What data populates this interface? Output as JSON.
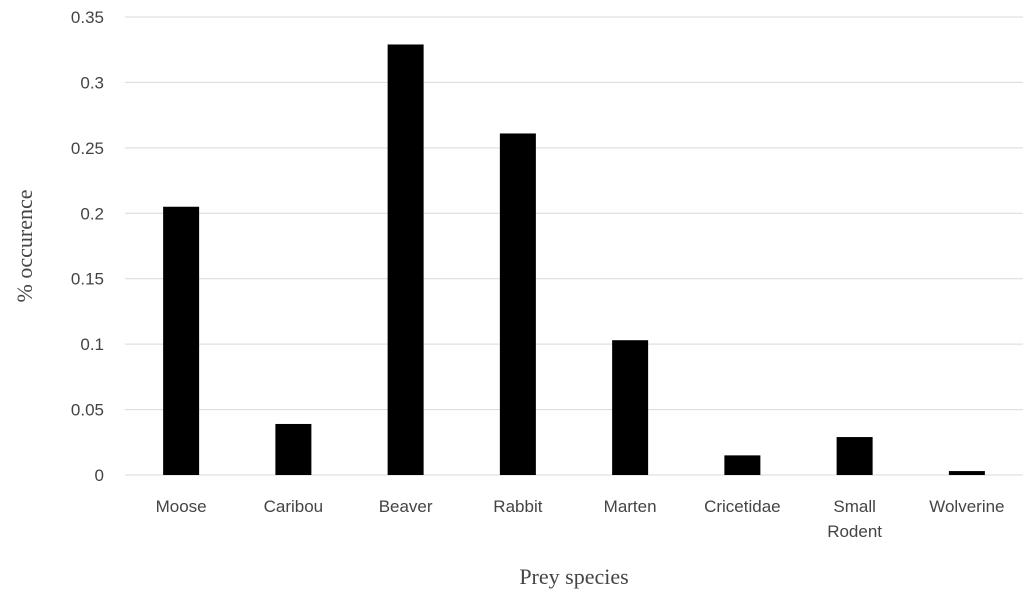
{
  "chart_data": {
    "type": "bar",
    "categories": [
      "Moose",
      "Caribou",
      "Beaver",
      "Rabbit",
      "Marten",
      "Cricetidae",
      "Small Rodent",
      "Wolverine"
    ],
    "category_lines": [
      [
        "Moose"
      ],
      [
        "Caribou"
      ],
      [
        "Beaver"
      ],
      [
        "Rabbit"
      ],
      [
        "Marten"
      ],
      [
        "Cricetidae"
      ],
      [
        "Small",
        "Rodent"
      ],
      [
        "Wolverine"
      ]
    ],
    "values": [
      0.205,
      0.039,
      0.329,
      0.261,
      0.103,
      0.015,
      0.029,
      0.003
    ],
    "title": "",
    "xlabel": "Prey species",
    "ylabel": "% occurence",
    "ylim": [
      0,
      0.35
    ],
    "yticks": [
      0,
      0.05,
      0.1,
      0.15,
      0.2,
      0.25,
      0.3,
      0.35
    ],
    "ytick_labels": [
      "0",
      "0.05",
      "0.1",
      "0.15",
      "0.2",
      "0.25",
      "0.3",
      "0.35"
    ],
    "grid": true,
    "legend": "none",
    "bar_color": "#000000",
    "grid_color": "#d9d9d9"
  }
}
